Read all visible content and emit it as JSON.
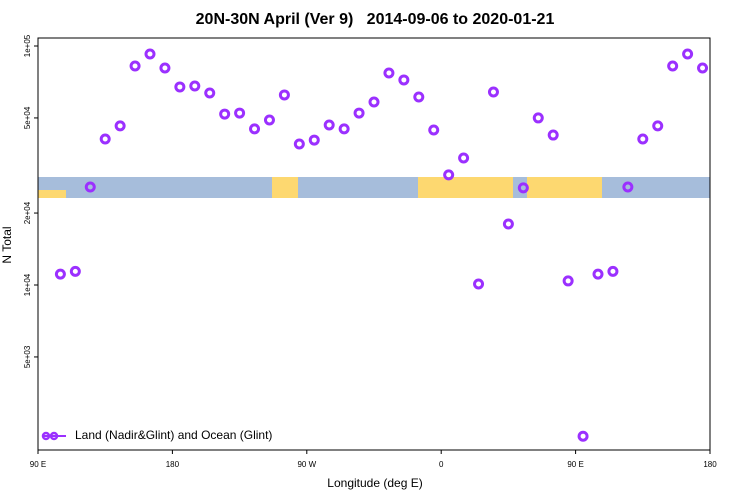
{
  "chart_data": {
    "type": "scatter",
    "title": "20N-30N April (Ver 9)   2014-09-06 to 2020-01-21",
    "x_label": "Longitude (deg E)",
    "y_label": "N Total",
    "log_y": true,
    "legend": "bottom-left",
    "xlim": [
      90,
      540
    ],
    "xticks": [
      {
        "value": 90,
        "label": "90 E"
      },
      {
        "value": 180,
        "label": "180"
      },
      {
        "value": 270,
        "label": "90 W"
      },
      {
        "value": 360,
        "label": "0"
      },
      {
        "value": 450,
        "label": "90 E"
      },
      {
        "value": 540,
        "label": "180"
      }
    ],
    "ylim": [
      2040,
      108000
    ],
    "yticks": [
      {
        "value": 100000,
        "label": "1e+05"
      },
      {
        "value": 50000,
        "label": "5e+04"
      },
      {
        "value": 20000,
        "label": "2e+04"
      },
      {
        "value": 10000,
        "label": "1e+04"
      },
      {
        "value": 5000,
        "label": "5e+03"
      }
    ],
    "series": [
      {
        "name": "Land (Nadir&Glint) and Ocean (Glint)",
        "color": "#9b30ff",
        "x": [
          105,
          115,
          125,
          135,
          145,
          155,
          165,
          175,
          185,
          195,
          205,
          215,
          225,
          235,
          245,
          255,
          265,
          275,
          285,
          295,
          305,
          315,
          325,
          335,
          345,
          355,
          365,
          375,
          385,
          395,
          405,
          415,
          425,
          435,
          445,
          455,
          465,
          475,
          485,
          495,
          505,
          515,
          525,
          535
        ],
        "values": [
          11100,
          11400,
          25700,
          40800,
          46300,
          82500,
          92600,
          80900,
          67400,
          68000,
          63600,
          51900,
          52400,
          45000,
          49000,
          62400,
          38900,
          40400,
          46700,
          45000,
          52400,
          58300,
          77100,
          72100,
          61200,
          44500,
          28900,
          34000,
          10100,
          64200,
          18000,
          25500,
          50000,
          42400,
          10400,
          2330,
          11100,
          11400,
          25700,
          40800,
          46300,
          82500,
          92600,
          80900
        ]
      }
    ]
  }
}
